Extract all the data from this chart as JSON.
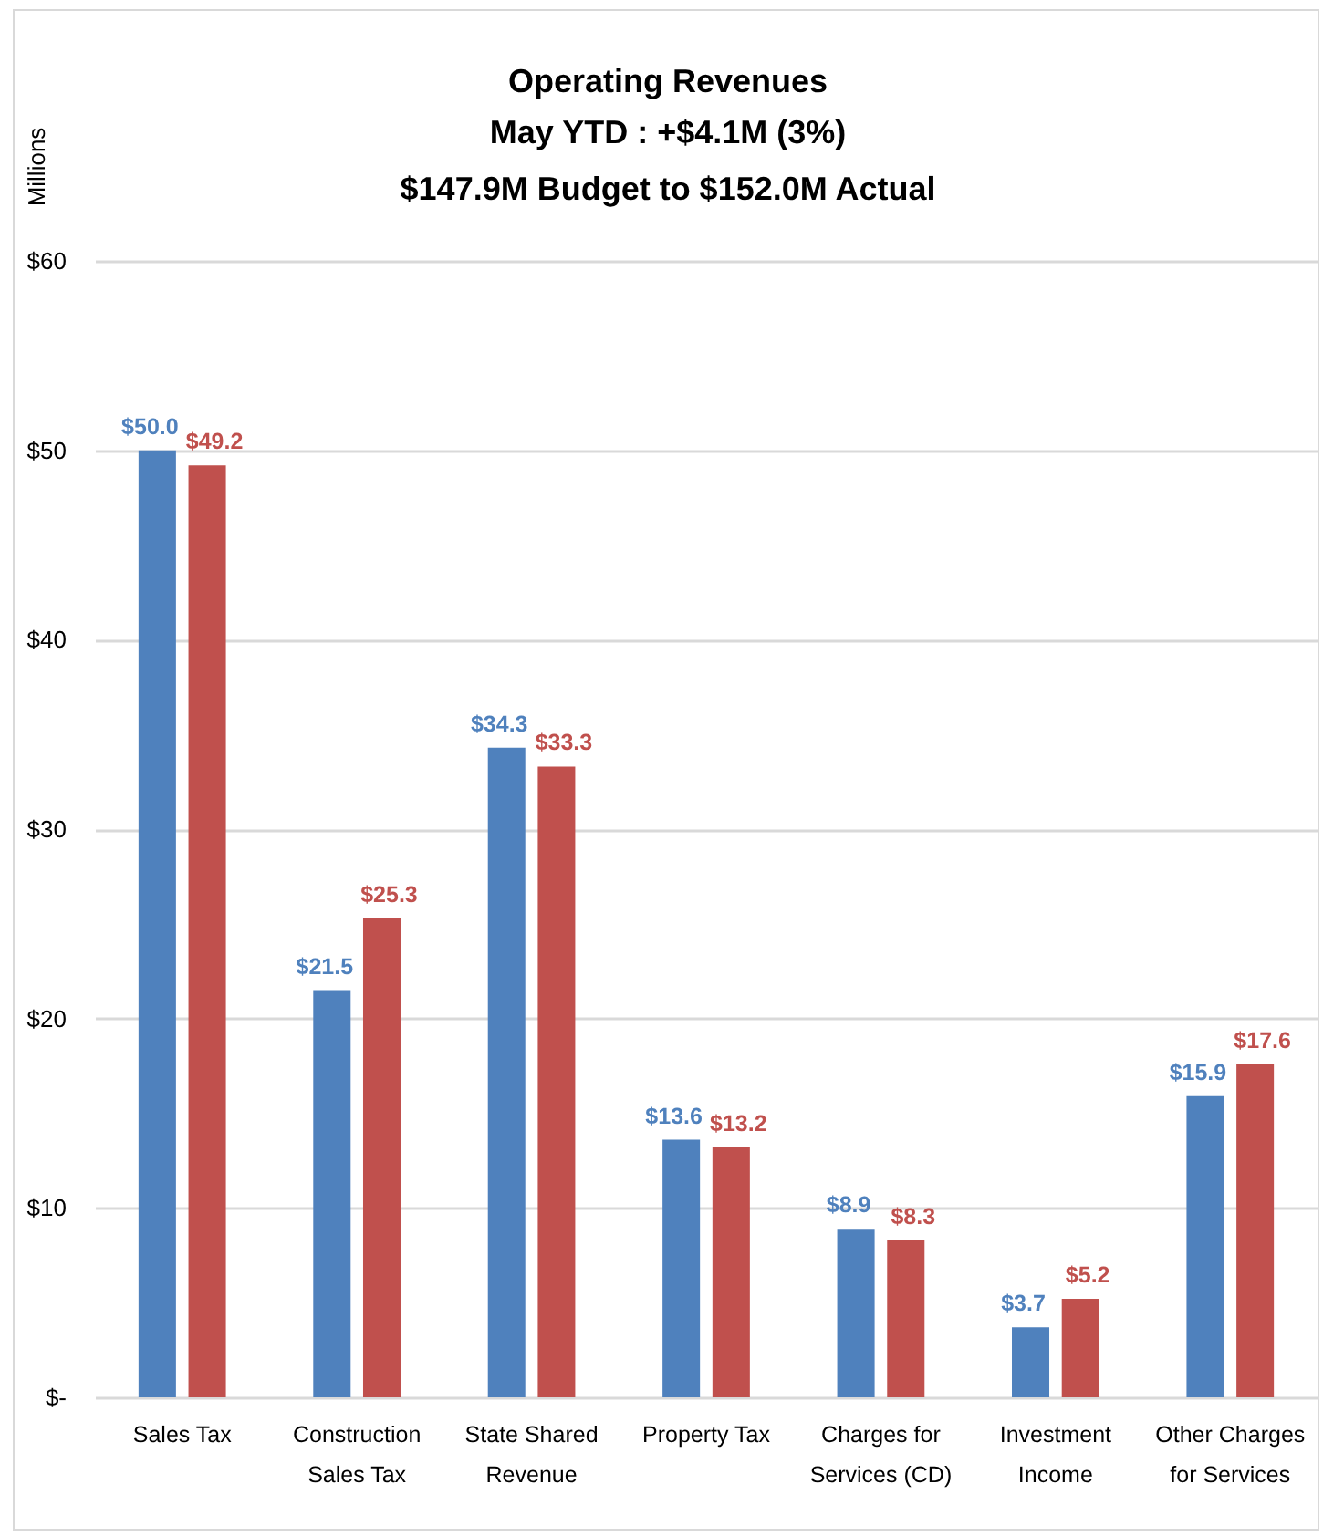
{
  "chart_data": {
    "type": "bar",
    "title": "Operating Revenues",
    "subtitle": "May YTD : +$4.1M (3%)\n$147.9M Budget to $152.0M Actual",
    "ylabel": "Millions",
    "categories": [
      "Sales Tax",
      "Construction Sales Tax",
      "State Shared Revenue",
      "Property Tax",
      "Charges for Services (CD)",
      "Investment Income",
      "Other Charges for Services"
    ],
    "series": [
      {
        "color": "#4f81bd",
        "values": [
          50.0,
          21.5,
          34.3,
          13.6,
          8.9,
          3.7,
          15.9
        ],
        "value_labels": [
          "$50.0",
          "$21.5",
          "$34.3",
          "$13.6",
          "$8.9",
          "$3.7",
          "$15.9"
        ]
      },
      {
        "color": "#c0504d",
        "values": [
          49.2,
          25.3,
          33.3,
          13.2,
          8.3,
          5.2,
          17.6
        ],
        "value_labels": [
          "$49.2",
          "$25.3",
          "$33.3",
          "$13.2",
          "$8.3",
          "$5.2",
          "$17.6"
        ]
      }
    ],
    "ylim": [
      0,
      60
    ],
    "yticks": [
      {
        "value": 0,
        "label": "$-"
      },
      {
        "value": 10,
        "label": "$10"
      },
      {
        "value": 20,
        "label": "$20"
      },
      {
        "value": 30,
        "label": "$30"
      },
      {
        "value": 40,
        "label": "$40"
      },
      {
        "value": 50,
        "label": "$50"
      },
      {
        "value": 60,
        "label": "$60"
      }
    ],
    "grid": true
  }
}
